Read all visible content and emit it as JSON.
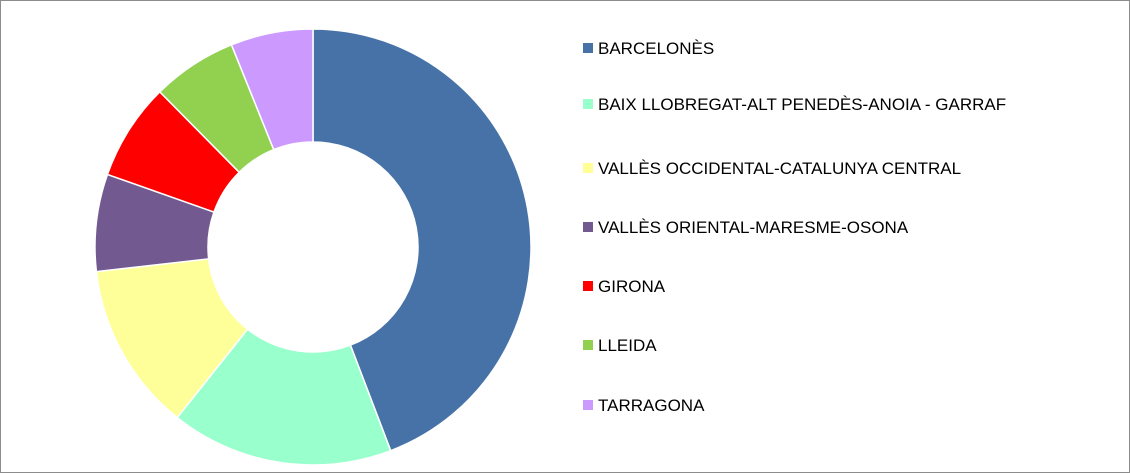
{
  "chart_data": {
    "type": "donut",
    "categories": [
      "BARCELONÈS",
      "BAIX LLOBREGAT-ALT PENEDÈS-ANOIA - GARRAF",
      "VALLÈS OCCIDENTAL-CATALUNYA CENTRAL",
      "VALLÈS ORIENTAL-MARESME-OSONA",
      "GIRONA",
      "LLEIDA",
      "TARRAGONA"
    ],
    "values": [
      44.2,
      16.5,
      12.5,
      7.2,
      7.2,
      6.3,
      6.1
    ],
    "colors": [
      "#4672a8",
      "#99ffcc",
      "#ffff99",
      "#725a91",
      "#ff0000",
      "#92d050",
      "#cc99ff"
    ],
    "legend": "right"
  }
}
